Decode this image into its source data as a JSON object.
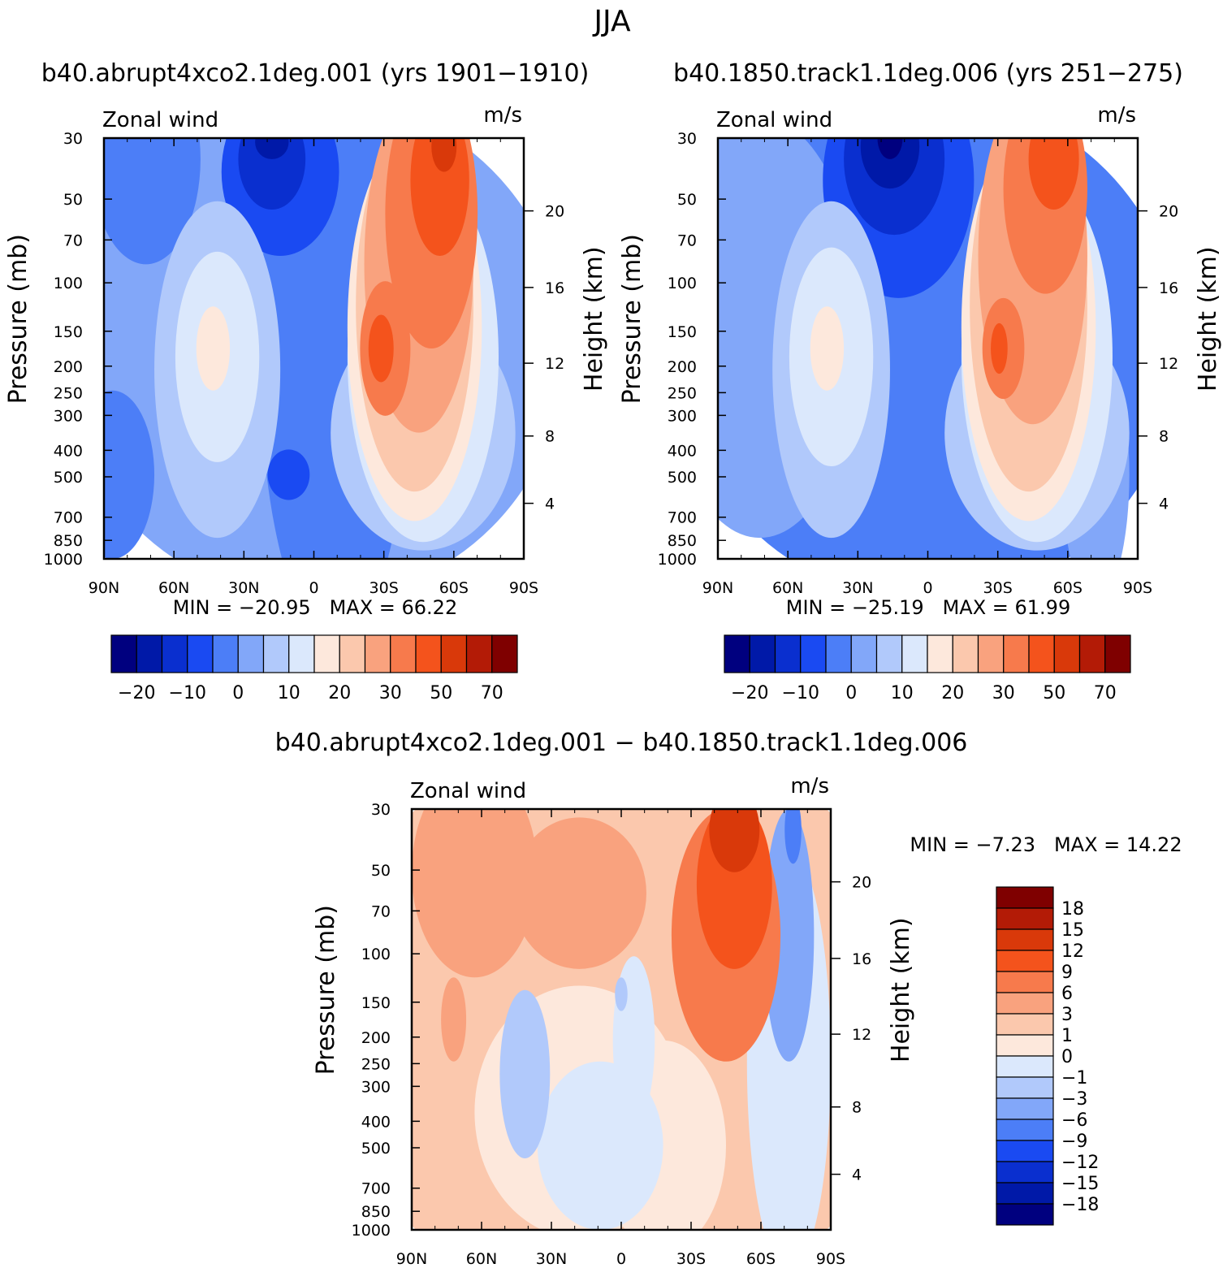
{
  "figure_title": "JJA",
  "chart_data": [
    {
      "type": "contour",
      "title": "b40.abrupt4xco2.1deg.001 (yrs 1901−1910)",
      "variable_label": "Zonal wind",
      "units": "m/s",
      "ylabel": "Pressure (mb)",
      "ylabel_right": "Height (km)",
      "x_ticks": [
        "90N",
        "60N",
        "30N",
        "0",
        "30S",
        "60S",
        "90S"
      ],
      "y_ticks": [
        "30",
        "50",
        "70",
        "100",
        "150",
        "200",
        "250",
        "300",
        "400",
        "500",
        "700",
        "850",
        "1000"
      ],
      "y_ticks_right": [
        "20",
        "16",
        "12",
        "8",
        "4"
      ],
      "stats": {
        "min_label": "MIN =",
        "min": "−20.95",
        "max_label": "MAX =",
        "max": "66.22"
      },
      "colorbar": {
        "orientation": "horizontal",
        "colors": [
          "#00007f",
          "#0019a8",
          "#0a2fcf",
          "#1a4af2",
          "#4c7ef7",
          "#82a7f9",
          "#b1c9fb",
          "#dbe8fc",
          "#fde8dc",
          "#fbc8ad",
          "#f9a27e",
          "#f77a4c",
          "#f4531c",
          "#d9390a",
          "#b31b06",
          "#7f0000"
        ],
        "labels": [
          "−20",
          "−10",
          "0",
          "10",
          "20",
          "30",
          "50",
          "70"
        ]
      }
    },
    {
      "type": "contour",
      "title": "b40.1850.track1.1deg.006 (yrs 251−275)",
      "variable_label": "Zonal wind",
      "units": "m/s",
      "ylabel": "Pressure (mb)",
      "ylabel_right": "Height (km)",
      "x_ticks": [
        "90N",
        "60N",
        "30N",
        "0",
        "30S",
        "60S",
        "90S"
      ],
      "y_ticks": [
        "30",
        "50",
        "70",
        "100",
        "150",
        "200",
        "250",
        "300",
        "400",
        "500",
        "700",
        "850",
        "1000"
      ],
      "y_ticks_right": [
        "20",
        "16",
        "12",
        "8",
        "4"
      ],
      "stats": {
        "min_label": "MIN =",
        "min": "−25.19",
        "max_label": "MAX =",
        "max": "61.99"
      },
      "colorbar": {
        "orientation": "horizontal",
        "colors": [
          "#00007f",
          "#0019a8",
          "#0a2fcf",
          "#1a4af2",
          "#4c7ef7",
          "#82a7f9",
          "#b1c9fb",
          "#dbe8fc",
          "#fde8dc",
          "#fbc8ad",
          "#f9a27e",
          "#f77a4c",
          "#f4531c",
          "#d9390a",
          "#b31b06",
          "#7f0000"
        ],
        "labels": [
          "−20",
          "−10",
          "0",
          "10",
          "20",
          "30",
          "50",
          "70"
        ]
      }
    },
    {
      "type": "contour",
      "title": "b40.abrupt4xco2.1deg.001 − b40.1850.track1.1deg.006",
      "variable_label": "Zonal wind",
      "units": "m/s",
      "ylabel": "Pressure (mb)",
      "ylabel_right": "Height (km)",
      "x_ticks": [
        "90N",
        "60N",
        "30N",
        "0",
        "30S",
        "60S",
        "90S"
      ],
      "y_ticks": [
        "30",
        "50",
        "70",
        "100",
        "150",
        "200",
        "250",
        "300",
        "400",
        "500",
        "700",
        "850",
        "1000"
      ],
      "y_ticks_right": [
        "20",
        "16",
        "12",
        "8",
        "4"
      ],
      "stats": {
        "min_label": "MIN =",
        "min": "−7.23",
        "max_label": "MAX =",
        "max": "14.22"
      },
      "colorbar": {
        "orientation": "vertical",
        "colors": [
          "#7f0000",
          "#b31b06",
          "#d9390a",
          "#f4531c",
          "#f77a4c",
          "#f9a27e",
          "#fbc8ad",
          "#fde8dc",
          "#dbe8fc",
          "#b1c9fb",
          "#82a7f9",
          "#4c7ef7",
          "#1a4af2",
          "#0a2fcf",
          "#0019a8",
          "#00007f"
        ],
        "labels": [
          "18",
          "15",
          "12",
          "9",
          "6",
          "3",
          "1",
          "0",
          "−1",
          "−3",
          "−6",
          "−9",
          "−12",
          "−15",
          "−18"
        ]
      }
    }
  ]
}
